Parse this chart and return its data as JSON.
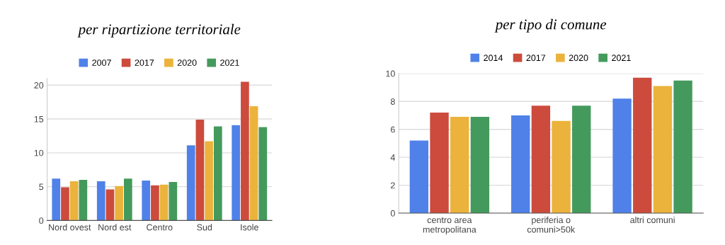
{
  "chart_data": [
    {
      "type": "bar",
      "title": "per ripartizione territoriale",
      "categories": [
        "Nord ovest",
        "Nord est",
        "Centro",
        "Sud",
        "Isole"
      ],
      "series": [
        {
          "name": "2007",
          "color": "#4f81e8",
          "values": [
            6.2,
            5.8,
            5.9,
            11.1,
            14.1
          ]
        },
        {
          "name": "2017",
          "color": "#cc4b3c",
          "values": [
            4.9,
            4.6,
            5.2,
            14.9,
            20.5
          ]
        },
        {
          "name": "2020",
          "color": "#ebb33c",
          "values": [
            5.8,
            5.1,
            5.3,
            11.7,
            16.9
          ]
        },
        {
          "name": "2021",
          "color": "#449a5c",
          "values": [
            6.0,
            6.2,
            5.7,
            13.9,
            13.8
          ]
        }
      ],
      "ylim": [
        0,
        21
      ],
      "yticks": [
        0,
        5,
        10,
        15,
        20
      ],
      "grid": "y",
      "legend": "top"
    },
    {
      "type": "bar",
      "title": "per tipo di comune",
      "categories": [
        "centro area\nmetropolitana",
        "periferia o\ncomuni>50k",
        "altri comuni"
      ],
      "series": [
        {
          "name": "2014",
          "color": "#4f81e8",
          "values": [
            5.2,
            7.0,
            8.2
          ]
        },
        {
          "name": "2017",
          "color": "#cc4b3c",
          "values": [
            7.2,
            7.7,
            9.7
          ]
        },
        {
          "name": "2020",
          "color": "#ebb33c",
          "values": [
            6.9,
            6.6,
            9.1
          ]
        },
        {
          "name": "2021",
          "color": "#449a5c",
          "values": [
            6.9,
            7.7,
            9.5
          ]
        }
      ],
      "ylim": [
        0,
        10
      ],
      "yticks": [
        0,
        2,
        4,
        6,
        8,
        10
      ],
      "grid": "y",
      "legend": "top"
    }
  ]
}
